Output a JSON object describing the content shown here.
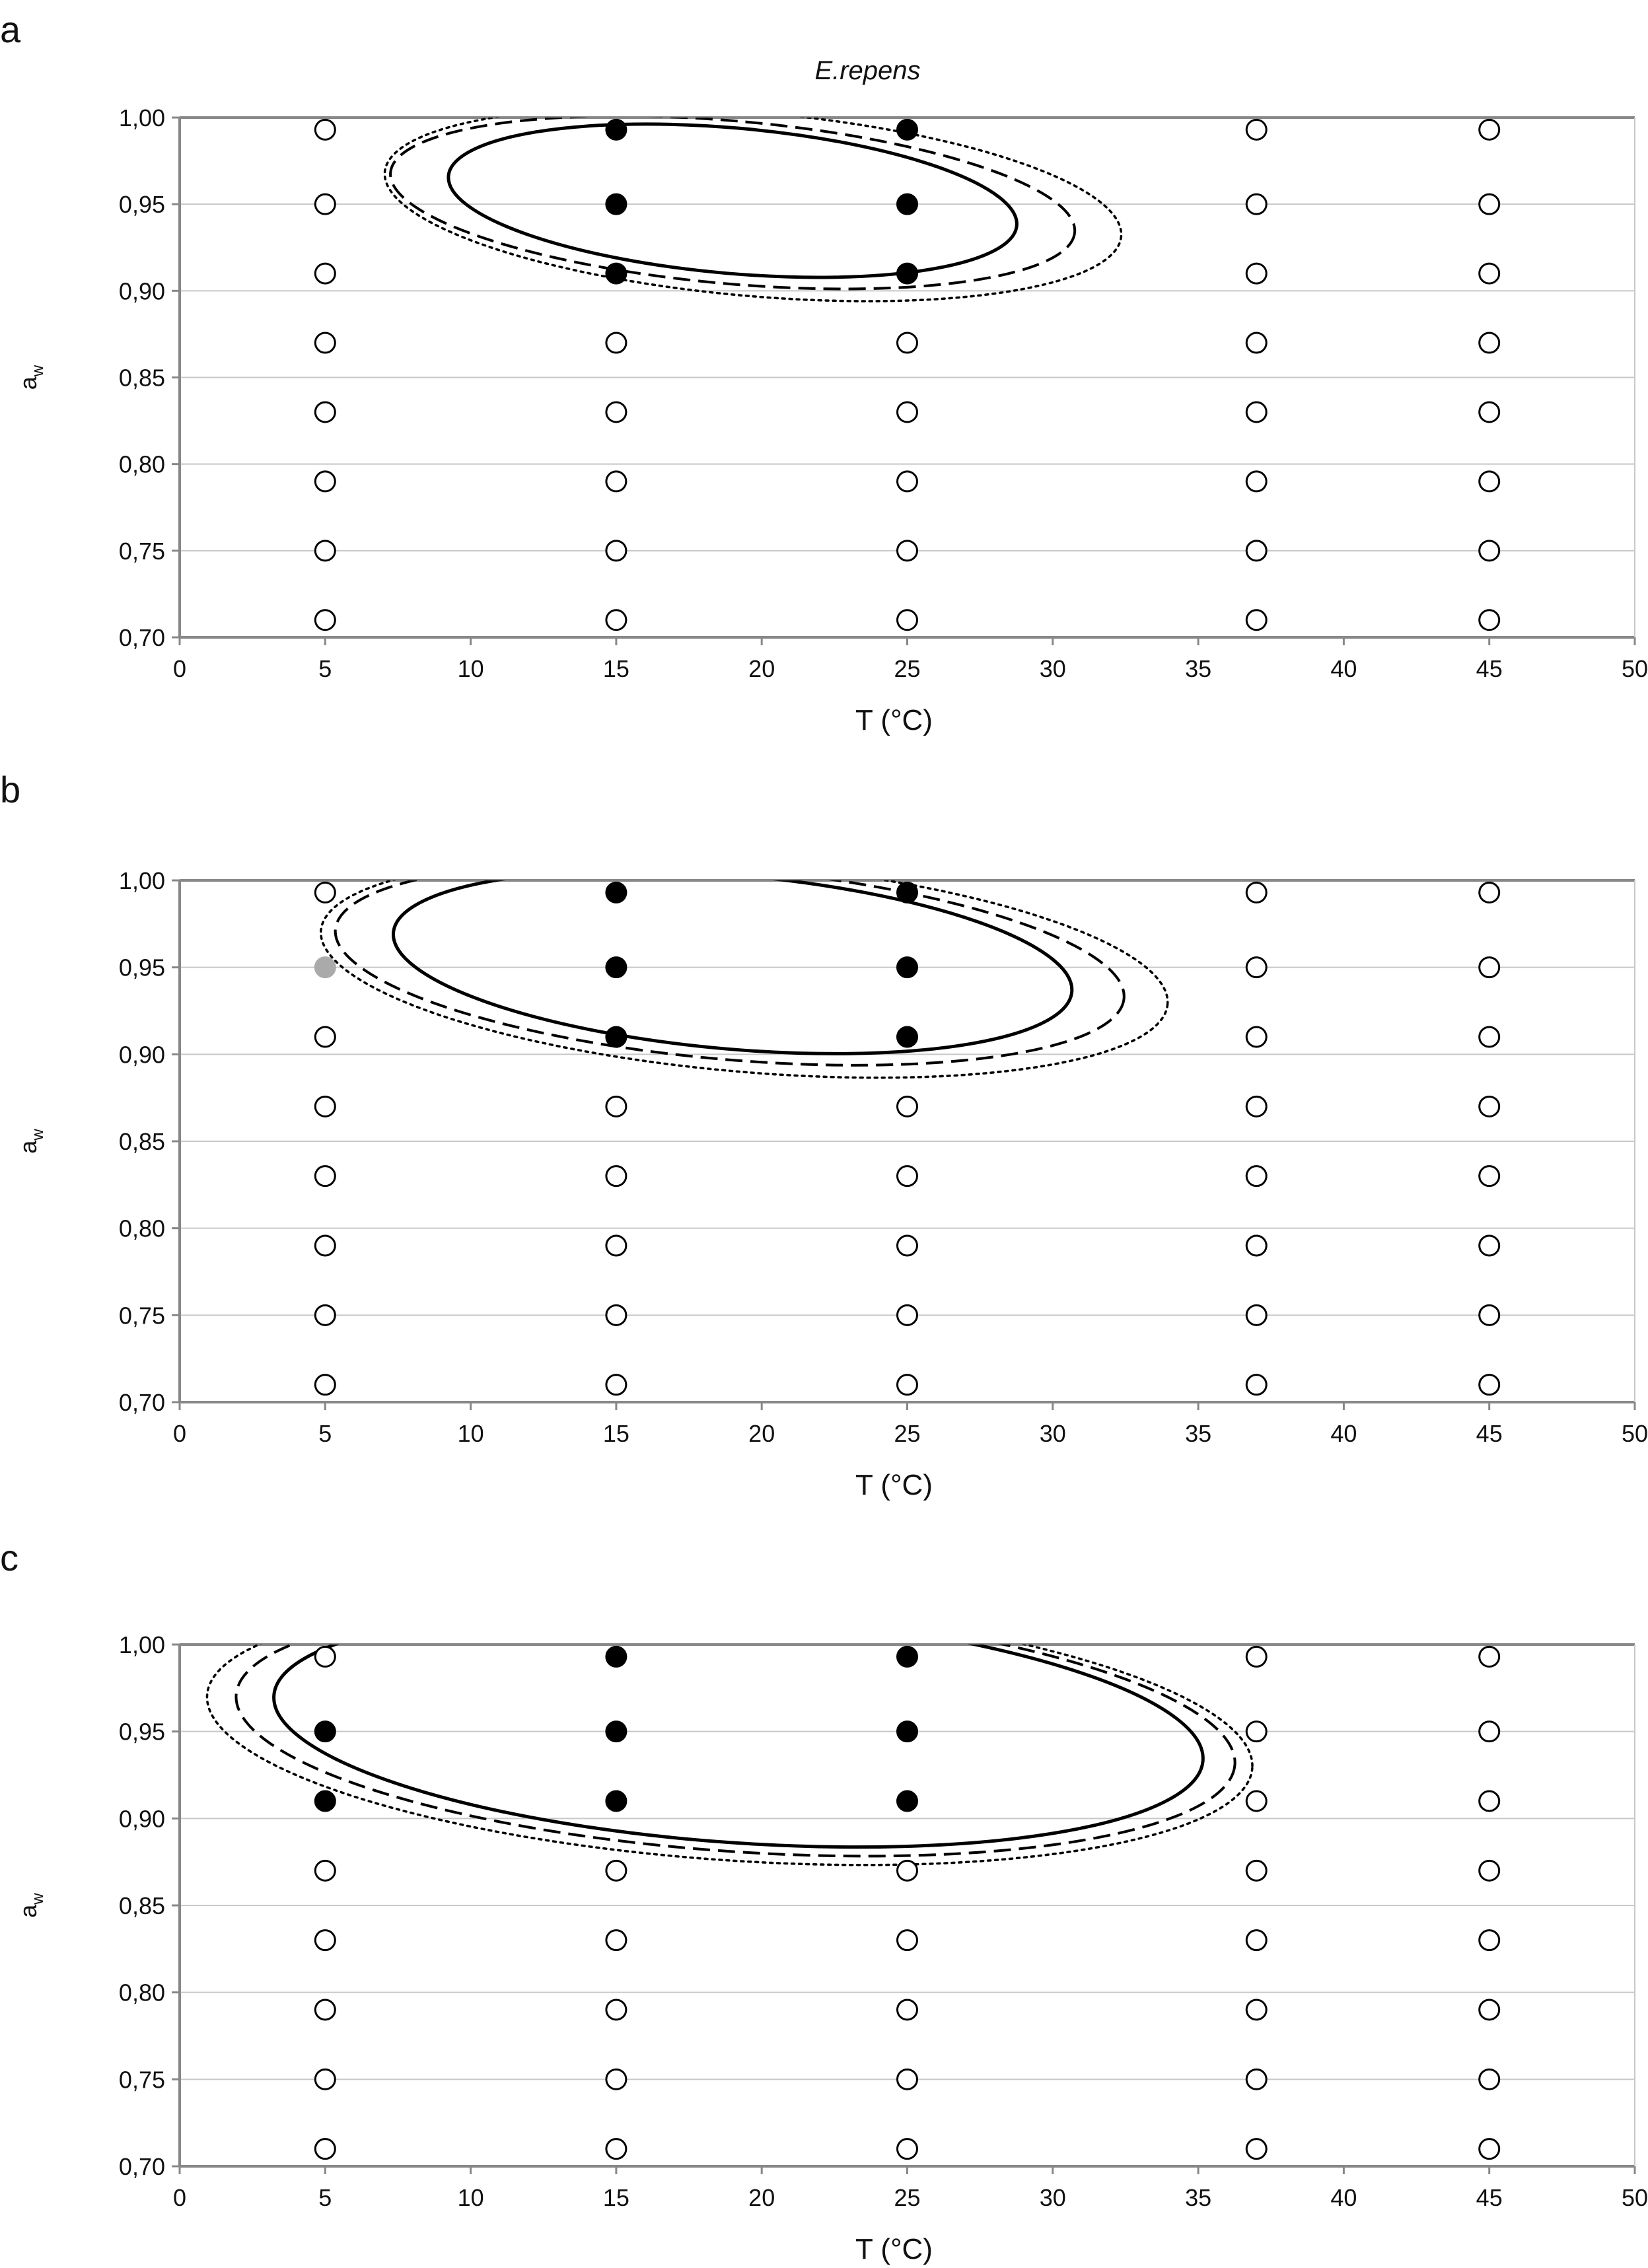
{
  "chart_data": [
    {
      "type": "scatter",
      "panel": "a",
      "title": "E.repens",
      "xlabel": "T (°C)",
      "ylabel_main": "a",
      "ylabel_sub": "w",
      "xlim": [
        0,
        50
      ],
      "ylim": [
        0.7,
        1.0
      ],
      "xticks": [
        "0",
        "5",
        "10",
        "15",
        "20",
        "25",
        "30",
        "35",
        "40",
        "45",
        "50"
      ],
      "yticks": [
        "0,70",
        "0,75",
        "0,80",
        "0,85",
        "0,90",
        "0,95",
        "1,00"
      ],
      "grid": "horizontal",
      "growth_colors": {
        "growth": "#000000",
        "no_growth": "#ffffff",
        "partial": "#aaaaaa"
      },
      "temperatures": [
        5,
        15,
        25,
        37,
        45
      ],
      "aw_levels": [
        0.993,
        0.95,
        0.91,
        0.87,
        0.83,
        0.79,
        0.75,
        0.71
      ],
      "growth_points": [
        [
          15,
          0.993
        ],
        [
          15,
          0.95
        ],
        [
          15,
          0.91
        ],
        [
          25,
          0.993
        ],
        [
          25,
          0.95
        ],
        [
          25,
          0.91
        ]
      ],
      "partial_points": [],
      "boundaries": [
        {
          "style": "solid",
          "cx": 19.0,
          "cy": 0.952,
          "rx": 9.8,
          "ry": 0.042,
          "rot": 5
        },
        {
          "style": "dashed",
          "cx": 19.0,
          "cy": 0.951,
          "rx": 11.8,
          "ry": 0.047,
          "rot": 5
        },
        {
          "style": "dotted",
          "cx": 19.7,
          "cy": 0.95,
          "rx": 12.7,
          "ry": 0.053,
          "rot": 5
        }
      ]
    },
    {
      "type": "scatter",
      "panel": "b",
      "title": "",
      "xlabel": "T (°C)",
      "ylabel_main": "a",
      "ylabel_sub": "w",
      "xlim": [
        0,
        50
      ],
      "ylim": [
        0.7,
        1.0
      ],
      "xticks": [
        "0",
        "5",
        "10",
        "15",
        "20",
        "25",
        "30",
        "35",
        "40",
        "45",
        "50"
      ],
      "yticks": [
        "0,70",
        "0,75",
        "0,80",
        "0,85",
        "0,90",
        "0,95",
        "1,00"
      ],
      "grid": "horizontal",
      "growth_colors": {
        "growth": "#000000",
        "no_growth": "#ffffff",
        "partial": "#aaaaaa"
      },
      "temperatures": [
        5,
        15,
        25,
        37,
        45
      ],
      "aw_levels": [
        0.993,
        0.95,
        0.91,
        0.87,
        0.83,
        0.79,
        0.75,
        0.71
      ],
      "growth_points": [
        [
          15,
          0.993
        ],
        [
          15,
          0.95
        ],
        [
          15,
          0.91
        ],
        [
          25,
          0.993
        ],
        [
          25,
          0.95
        ],
        [
          25,
          0.91
        ]
      ],
      "partial_points": [
        [
          5,
          0.95
        ]
      ],
      "boundaries": [
        {
          "style": "solid",
          "cx": 19.0,
          "cy": 0.953,
          "rx": 11.7,
          "ry": 0.05,
          "rot": 5
        },
        {
          "style": "dashed",
          "cx": 18.9,
          "cy": 0.952,
          "rx": 13.6,
          "ry": 0.055,
          "rot": 5
        },
        {
          "style": "dotted",
          "cx": 19.4,
          "cy": 0.95,
          "rx": 14.6,
          "ry": 0.06,
          "rot": 5
        }
      ]
    },
    {
      "type": "scatter",
      "panel": "c",
      "title": "",
      "xlabel": "T (°C)",
      "ylabel_main": "a",
      "ylabel_sub": "w",
      "xlim": [
        0,
        50
      ],
      "ylim": [
        0.7,
        1.0
      ],
      "xticks": [
        "0",
        "5",
        "10",
        "15",
        "20",
        "25",
        "30",
        "35",
        "40",
        "45",
        "50"
      ],
      "yticks": [
        "0,70",
        "0,75",
        "0,80",
        "0,85",
        "0,90",
        "0,95",
        "1,00"
      ],
      "grid": "horizontal",
      "growth_colors": {
        "growth": "#000000",
        "no_growth": "#ffffff",
        "partial": "#aaaaaa"
      },
      "temperatures": [
        5,
        15,
        25,
        37,
        45
      ],
      "aw_levels": [
        0.993,
        0.95,
        0.91,
        0.87,
        0.83,
        0.79,
        0.75,
        0.71
      ],
      "growth_points": [
        [
          5,
          0.95
        ],
        [
          5,
          0.91
        ],
        [
          15,
          0.993
        ],
        [
          15,
          0.95
        ],
        [
          15,
          0.91
        ],
        [
          25,
          0.993
        ],
        [
          25,
          0.95
        ],
        [
          25,
          0.91
        ]
      ],
      "partial_points": [],
      "boundaries": [
        {
          "style": "solid",
          "cx": 19.2,
          "cy": 0.952,
          "rx": 16.0,
          "ry": 0.066,
          "rot": 4
        },
        {
          "style": "dashed",
          "cx": 19.1,
          "cy": 0.951,
          "rx": 17.2,
          "ry": 0.07,
          "rot": 4
        },
        {
          "style": "dotted",
          "cx": 18.9,
          "cy": 0.95,
          "rx": 18.0,
          "ry": 0.074,
          "rot": 4
        }
      ]
    }
  ]
}
